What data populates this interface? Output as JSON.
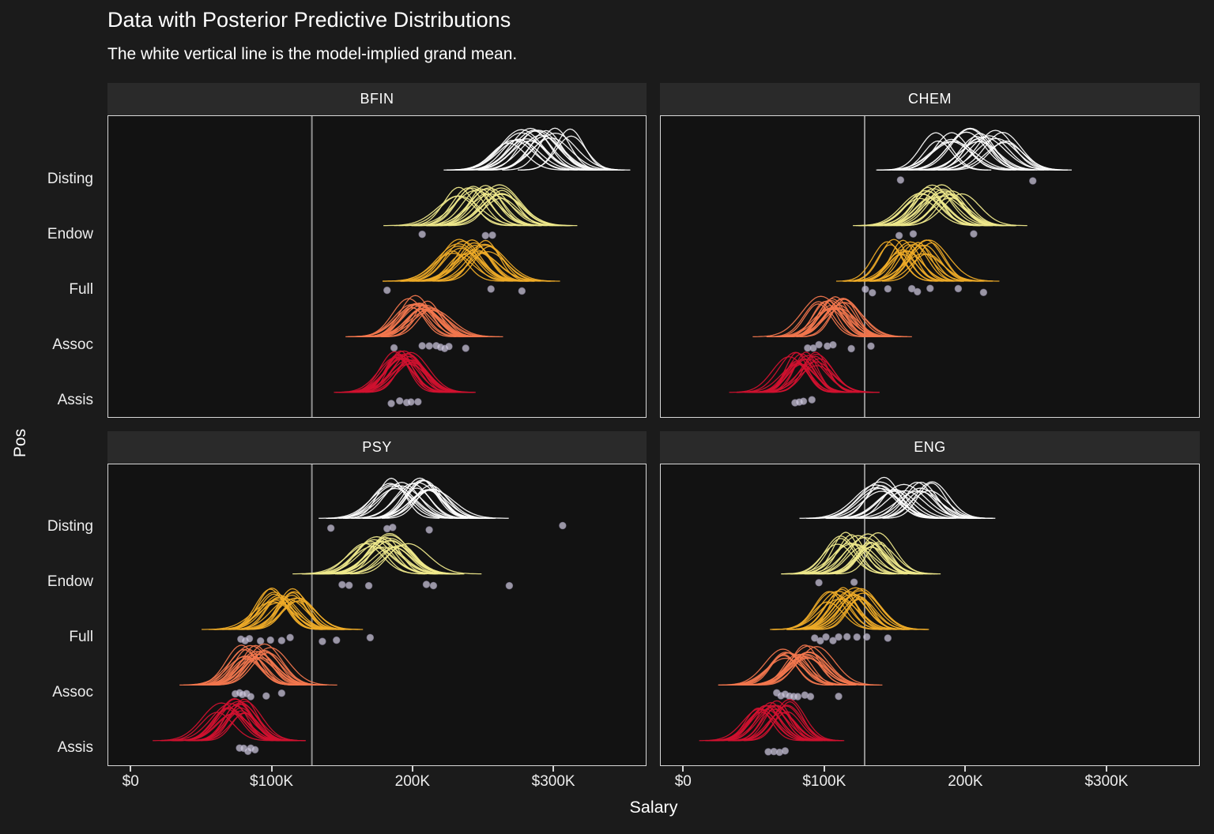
{
  "chart_data": {
    "type": "ridgeline",
    "title": "Data with Posterior Predictive Distributions",
    "subtitle": "The white vertical line is the model-implied grand mean.",
    "xlabel": "Salary",
    "ylabel": "Pos",
    "x_domain_thousands": [
      -16.4,
      366.1
    ],
    "x_ticks": [
      {
        "value": 0,
        "label": "$0"
      },
      {
        "value": 100,
        "label": "$100K"
      },
      {
        "value": 200,
        "label": "200K"
      },
      {
        "value": 300,
        "label": "$300K"
      }
    ],
    "grand_mean_thousands": 128.5,
    "categories": [
      "Disting",
      "Endow",
      "Full",
      "Assoc",
      "Assis"
    ],
    "curves_per_group": 20,
    "legend": "none",
    "facets": [
      {
        "name": "BFIN",
        "groups": [
          {
            "position": "Disting",
            "center": 292,
            "spread": 12.5,
            "center_jitter": 24,
            "points": []
          },
          {
            "position": "Endow",
            "center": 248,
            "spread": 12,
            "center_jitter": 16,
            "points": [
              207,
              252,
              257
            ]
          },
          {
            "position": "Full",
            "center": 240,
            "spread": 12,
            "center_jitter": 15,
            "points": [
              182,
              256,
              278
            ]
          },
          {
            "position": "Assoc",
            "center": 206,
            "spread": 11,
            "center_jitter": 9,
            "points": [
              187,
              207,
              212,
              217,
              220,
              223,
              226,
              238
            ]
          },
          {
            "position": "Assis",
            "center": 193,
            "spread": 10.5,
            "center_jitter": 7,
            "points": [
              185,
              191,
              196,
              199,
              204
            ]
          }
        ]
      },
      {
        "name": "CHEM",
        "groups": [
          {
            "position": "Disting",
            "center": 203,
            "spread": 12,
            "center_jitter": 26,
            "points": [
              154,
              248
            ]
          },
          {
            "position": "Endow",
            "center": 183,
            "spread": 12,
            "center_jitter": 17,
            "points": [
              153,
              163,
              206
            ]
          },
          {
            "position": "Full",
            "center": 158,
            "spread": 11,
            "center_jitter": 20,
            "points": [
              129,
              134,
              145,
              162,
              166,
              175,
              195,
              213
            ]
          },
          {
            "position": "Assoc",
            "center": 106,
            "spread": 11,
            "center_jitter": 11,
            "points": [
              88,
              92,
              96,
              102,
              106,
              119,
              133
            ]
          },
          {
            "position": "Assis",
            "center": 86,
            "spread": 10,
            "center_jitter": 12,
            "points": [
              79,
              82,
              85,
              91
            ]
          }
        ]
      },
      {
        "name": "PSY",
        "groups": [
          {
            "position": "Disting",
            "center": 200,
            "spread": 12,
            "center_jitter": 16,
            "points": [
              142,
              182,
              186,
              212,
              307
            ]
          },
          {
            "position": "Endow",
            "center": 181,
            "spread": 12,
            "center_jitter": 19,
            "points": [
              150,
              155,
              169,
              210,
              215,
              269
            ]
          },
          {
            "position": "Full",
            "center": 109,
            "spread": 11,
            "center_jitter": 11,
            "points": [
              78,
              81,
              84,
              92,
              99,
              107,
              113,
              136,
              146,
              170
            ]
          },
          {
            "position": "Assoc",
            "center": 89,
            "spread": 11,
            "center_jitter": 11,
            "points": [
              74,
              77,
              79,
              82,
              85,
              96,
              107
            ]
          },
          {
            "position": "Assis",
            "center": 71,
            "spread": 11,
            "center_jitter": 11,
            "points": [
              77,
              80,
              83,
              85,
              88
            ]
          }
        ]
      },
      {
        "name": "ENG",
        "groups": [
          {
            "position": "Disting",
            "center": 157,
            "spread": 12,
            "center_jitter": 22,
            "points": []
          },
          {
            "position": "Endow",
            "center": 124,
            "spread": 11,
            "center_jitter": 15,
            "points": [
              96,
              121
            ]
          },
          {
            "position": "Full",
            "center": 116,
            "spread": 11,
            "center_jitter": 14,
            "points": [
              93,
              97,
              101,
              106,
              110,
              116,
              123,
              130,
              145
            ]
          },
          {
            "position": "Assoc",
            "center": 83,
            "spread": 11,
            "center_jitter": 13,
            "points": [
              66,
              69,
              72,
              75,
              78,
              81,
              86,
              90,
              110
            ]
          },
          {
            "position": "Assis",
            "center": 64,
            "spread": 10,
            "center_jitter": 12,
            "points": [
              60,
              64,
              68,
              72
            ]
          }
        ]
      }
    ],
    "colors": {
      "Disting": "#FFFFFF",
      "Endow": "#F0EA8C",
      "Full": "#F0AC28",
      "Assoc": "#F2764D",
      "Assis": "#D1112F",
      "point": "#CFC9DE",
      "point_stroke": "#87819B",
      "grand_mean_line": "#909090",
      "background": "#1B1B1B",
      "panel_background": "#121212",
      "strip_background": "#2A2A2A",
      "border": "#D8D8D8",
      "text": "#FFFFFF",
      "axis_text": "#EDEDED"
    }
  }
}
